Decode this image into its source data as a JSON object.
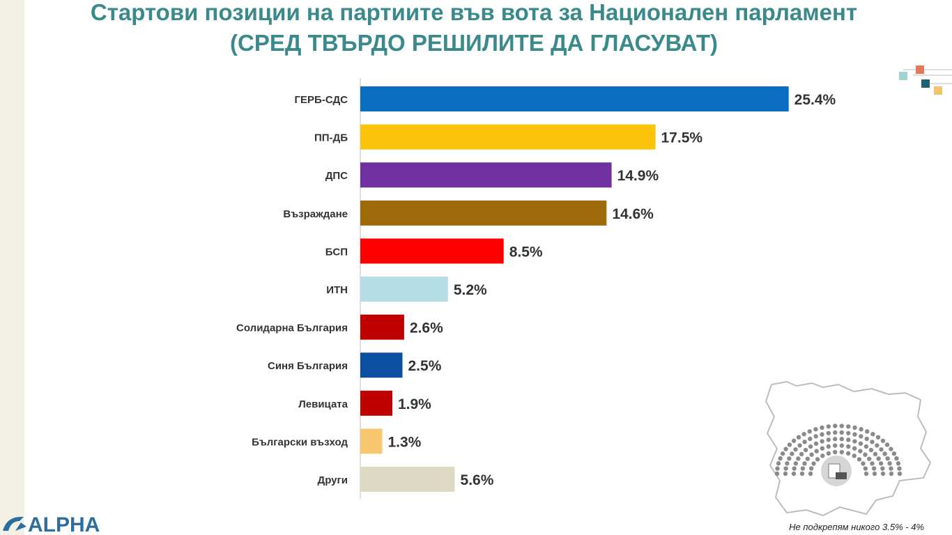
{
  "title_line1": "Стартови позиции на партиите във вота за Национален парламент",
  "title_line2": "(СРЕД ТВЪРДО РЕШИЛИТЕ ДА ГЛАСУВАТ)",
  "footnote": "Не подкрепям никого 3.5% - 4%",
  "logo_text": "ALPHA",
  "chart_data": {
    "type": "bar",
    "orientation": "horizontal",
    "categories": [
      "ГЕРБ-СДС",
      "ПП-ДБ",
      "ДПС",
      "Възраждане",
      "БСП",
      "ИТН",
      "Солидарна България",
      "Синя България",
      "Левицата",
      "Български възход",
      "Други"
    ],
    "values": [
      25.4,
      17.5,
      14.9,
      14.6,
      8.5,
      5.2,
      2.6,
      2.5,
      1.9,
      1.3,
      5.6
    ],
    "value_labels": [
      "25.4%",
      "17.5%",
      "14.9%",
      "14.6%",
      "8.5%",
      "5.2%",
      "2.6%",
      "2.5%",
      "1.9%",
      "1.3%",
      "5.6%"
    ],
    "colors": [
      "#0a6dbf",
      "#fbc30a",
      "#7030a0",
      "#9e6a0a",
      "#ff0000",
      "#b7dde8",
      "#c00000",
      "#0b4fa0",
      "#c00000",
      "#f7c870",
      "#ddd9c3"
    ],
    "xlim": [
      0,
      26
    ]
  }
}
